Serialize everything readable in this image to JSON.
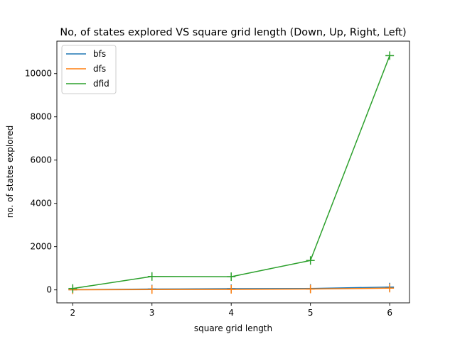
{
  "chart_data": {
    "type": "line",
    "title": "No, of states explored VS square grid length (Down, Up, Right, Left)",
    "xlabel": "square grid length",
    "ylabel": "no. of states explored",
    "x": [
      2,
      3,
      4,
      5,
      6
    ],
    "xticks": [
      "2",
      "3",
      "4",
      "5",
      "6"
    ],
    "yticks": [
      0,
      2000,
      4000,
      6000,
      8000,
      10000
    ],
    "ytick_labels": [
      "0",
      "2000",
      "4000",
      "6000",
      "8000",
      "10000"
    ],
    "xlim": [
      1.8,
      6.25
    ],
    "ylim": [
      -600,
      11500
    ],
    "grid": false,
    "legend_position": "upper left",
    "marker": "+",
    "series": [
      {
        "name": "bfs",
        "color": "#1f77b4",
        "values": [
          10,
          40,
          55,
          65,
          130
        ]
      },
      {
        "name": "dfs",
        "color": "#ff7f0e",
        "values": [
          5,
          15,
          25,
          40,
          80
        ]
      },
      {
        "name": "dfid",
        "color": "#2ca02c",
        "values": [
          65,
          620,
          610,
          1360,
          10830
        ]
      }
    ]
  }
}
